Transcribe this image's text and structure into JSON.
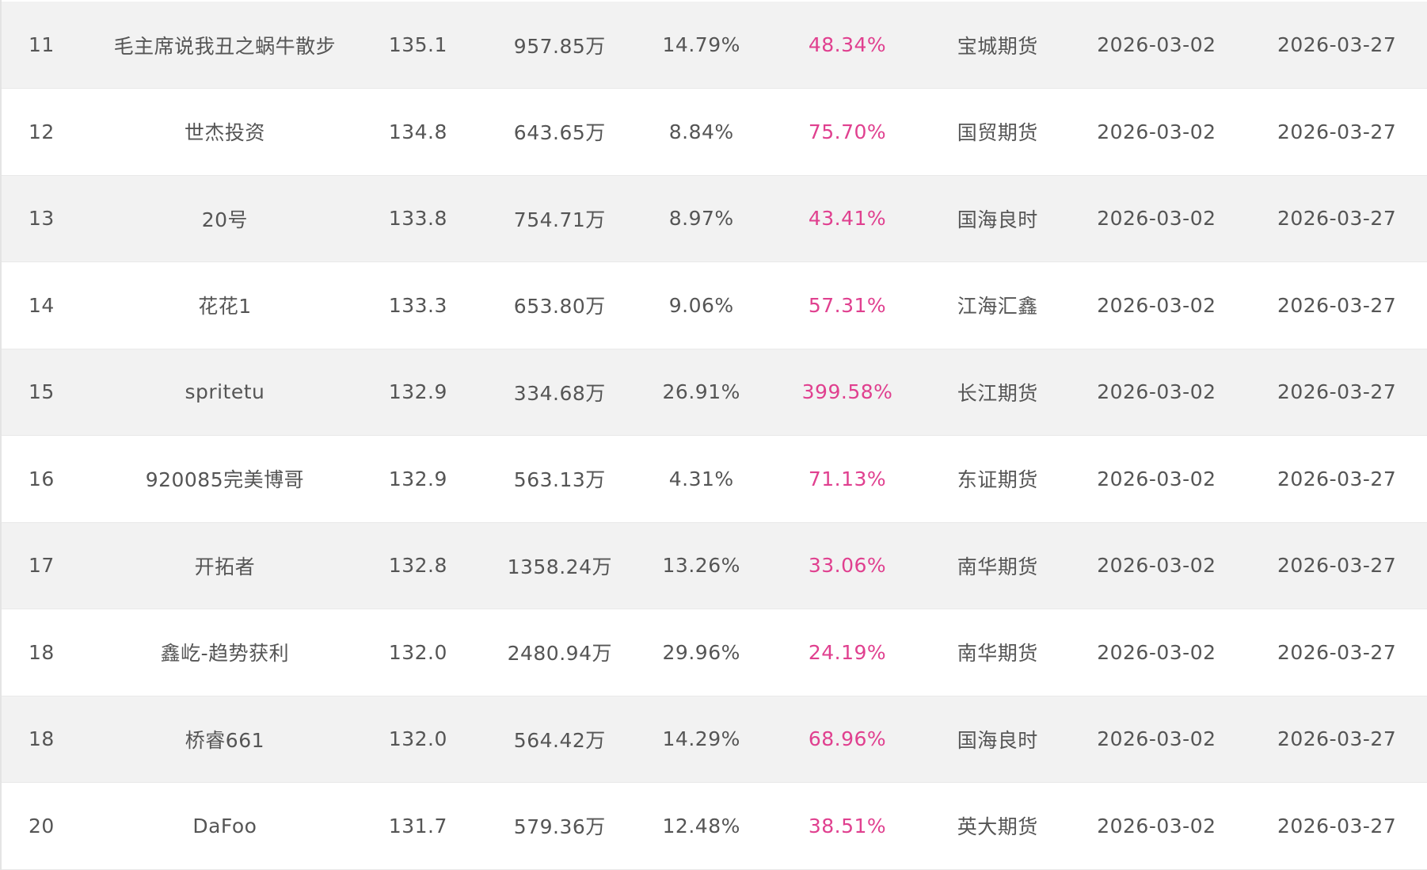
{
  "rows": [
    {
      "rank": "11",
      "name": "毛主席说我丑之蜗牛散步",
      "score": "135.1",
      "equity": "957.85万",
      "drawdown": "14.79%",
      "max_return": "48.34%",
      "broker": "宝城期货",
      "start": "2026-03-02",
      "end": "2026-03-27"
    },
    {
      "rank": "12",
      "name": "世杰投资",
      "score": "134.8",
      "equity": "643.65万",
      "drawdown": "8.84%",
      "max_return": "75.70%",
      "broker": "国贸期货",
      "start": "2026-03-02",
      "end": "2026-03-27"
    },
    {
      "rank": "13",
      "name": "20号",
      "score": "133.8",
      "equity": "754.71万",
      "drawdown": "8.97%",
      "max_return": "43.41%",
      "broker": "国海良时",
      "start": "2026-03-02",
      "end": "2026-03-27"
    },
    {
      "rank": "14",
      "name": "花花1",
      "score": "133.3",
      "equity": "653.80万",
      "drawdown": "9.06%",
      "max_return": "57.31%",
      "broker": "江海汇鑫",
      "start": "2026-03-02",
      "end": "2026-03-27"
    },
    {
      "rank": "15",
      "name": "spritetu",
      "score": "132.9",
      "equity": "334.68万",
      "drawdown": "26.91%",
      "max_return": "399.58%",
      "broker": "长江期货",
      "start": "2026-03-02",
      "end": "2026-03-27"
    },
    {
      "rank": "16",
      "name": "920085完美博哥",
      "score": "132.9",
      "equity": "563.13万",
      "drawdown": "4.31%",
      "max_return": "71.13%",
      "broker": "东证期货",
      "start": "2026-03-02",
      "end": "2026-03-27"
    },
    {
      "rank": "17",
      "name": "开拓者",
      "score": "132.8",
      "equity": "1358.24万",
      "drawdown": "13.26%",
      "max_return": "33.06%",
      "broker": "南华期货",
      "start": "2026-03-02",
      "end": "2026-03-27"
    },
    {
      "rank": "18",
      "name": "鑫屹-趋势获利",
      "score": "132.0",
      "equity": "2480.94万",
      "drawdown": "29.96%",
      "max_return": "24.19%",
      "broker": "南华期货",
      "start": "2026-03-02",
      "end": "2026-03-27"
    },
    {
      "rank": "18",
      "name": "桥睿661",
      "score": "132.0",
      "equity": "564.42万",
      "drawdown": "14.29%",
      "max_return": "68.96%",
      "broker": "国海良时",
      "start": "2026-03-02",
      "end": "2026-03-27"
    },
    {
      "rank": "20",
      "name": "DaFoo",
      "score": "131.7",
      "equity": "579.36万",
      "drawdown": "12.48%",
      "max_return": "38.51%",
      "broker": "英大期货",
      "start": "2026-03-02",
      "end": "2026-03-27"
    }
  ],
  "colors": {
    "highlight_text": "#e0408f",
    "body_text": "#555555",
    "alt_row_bg": "#f2f2f2"
  }
}
